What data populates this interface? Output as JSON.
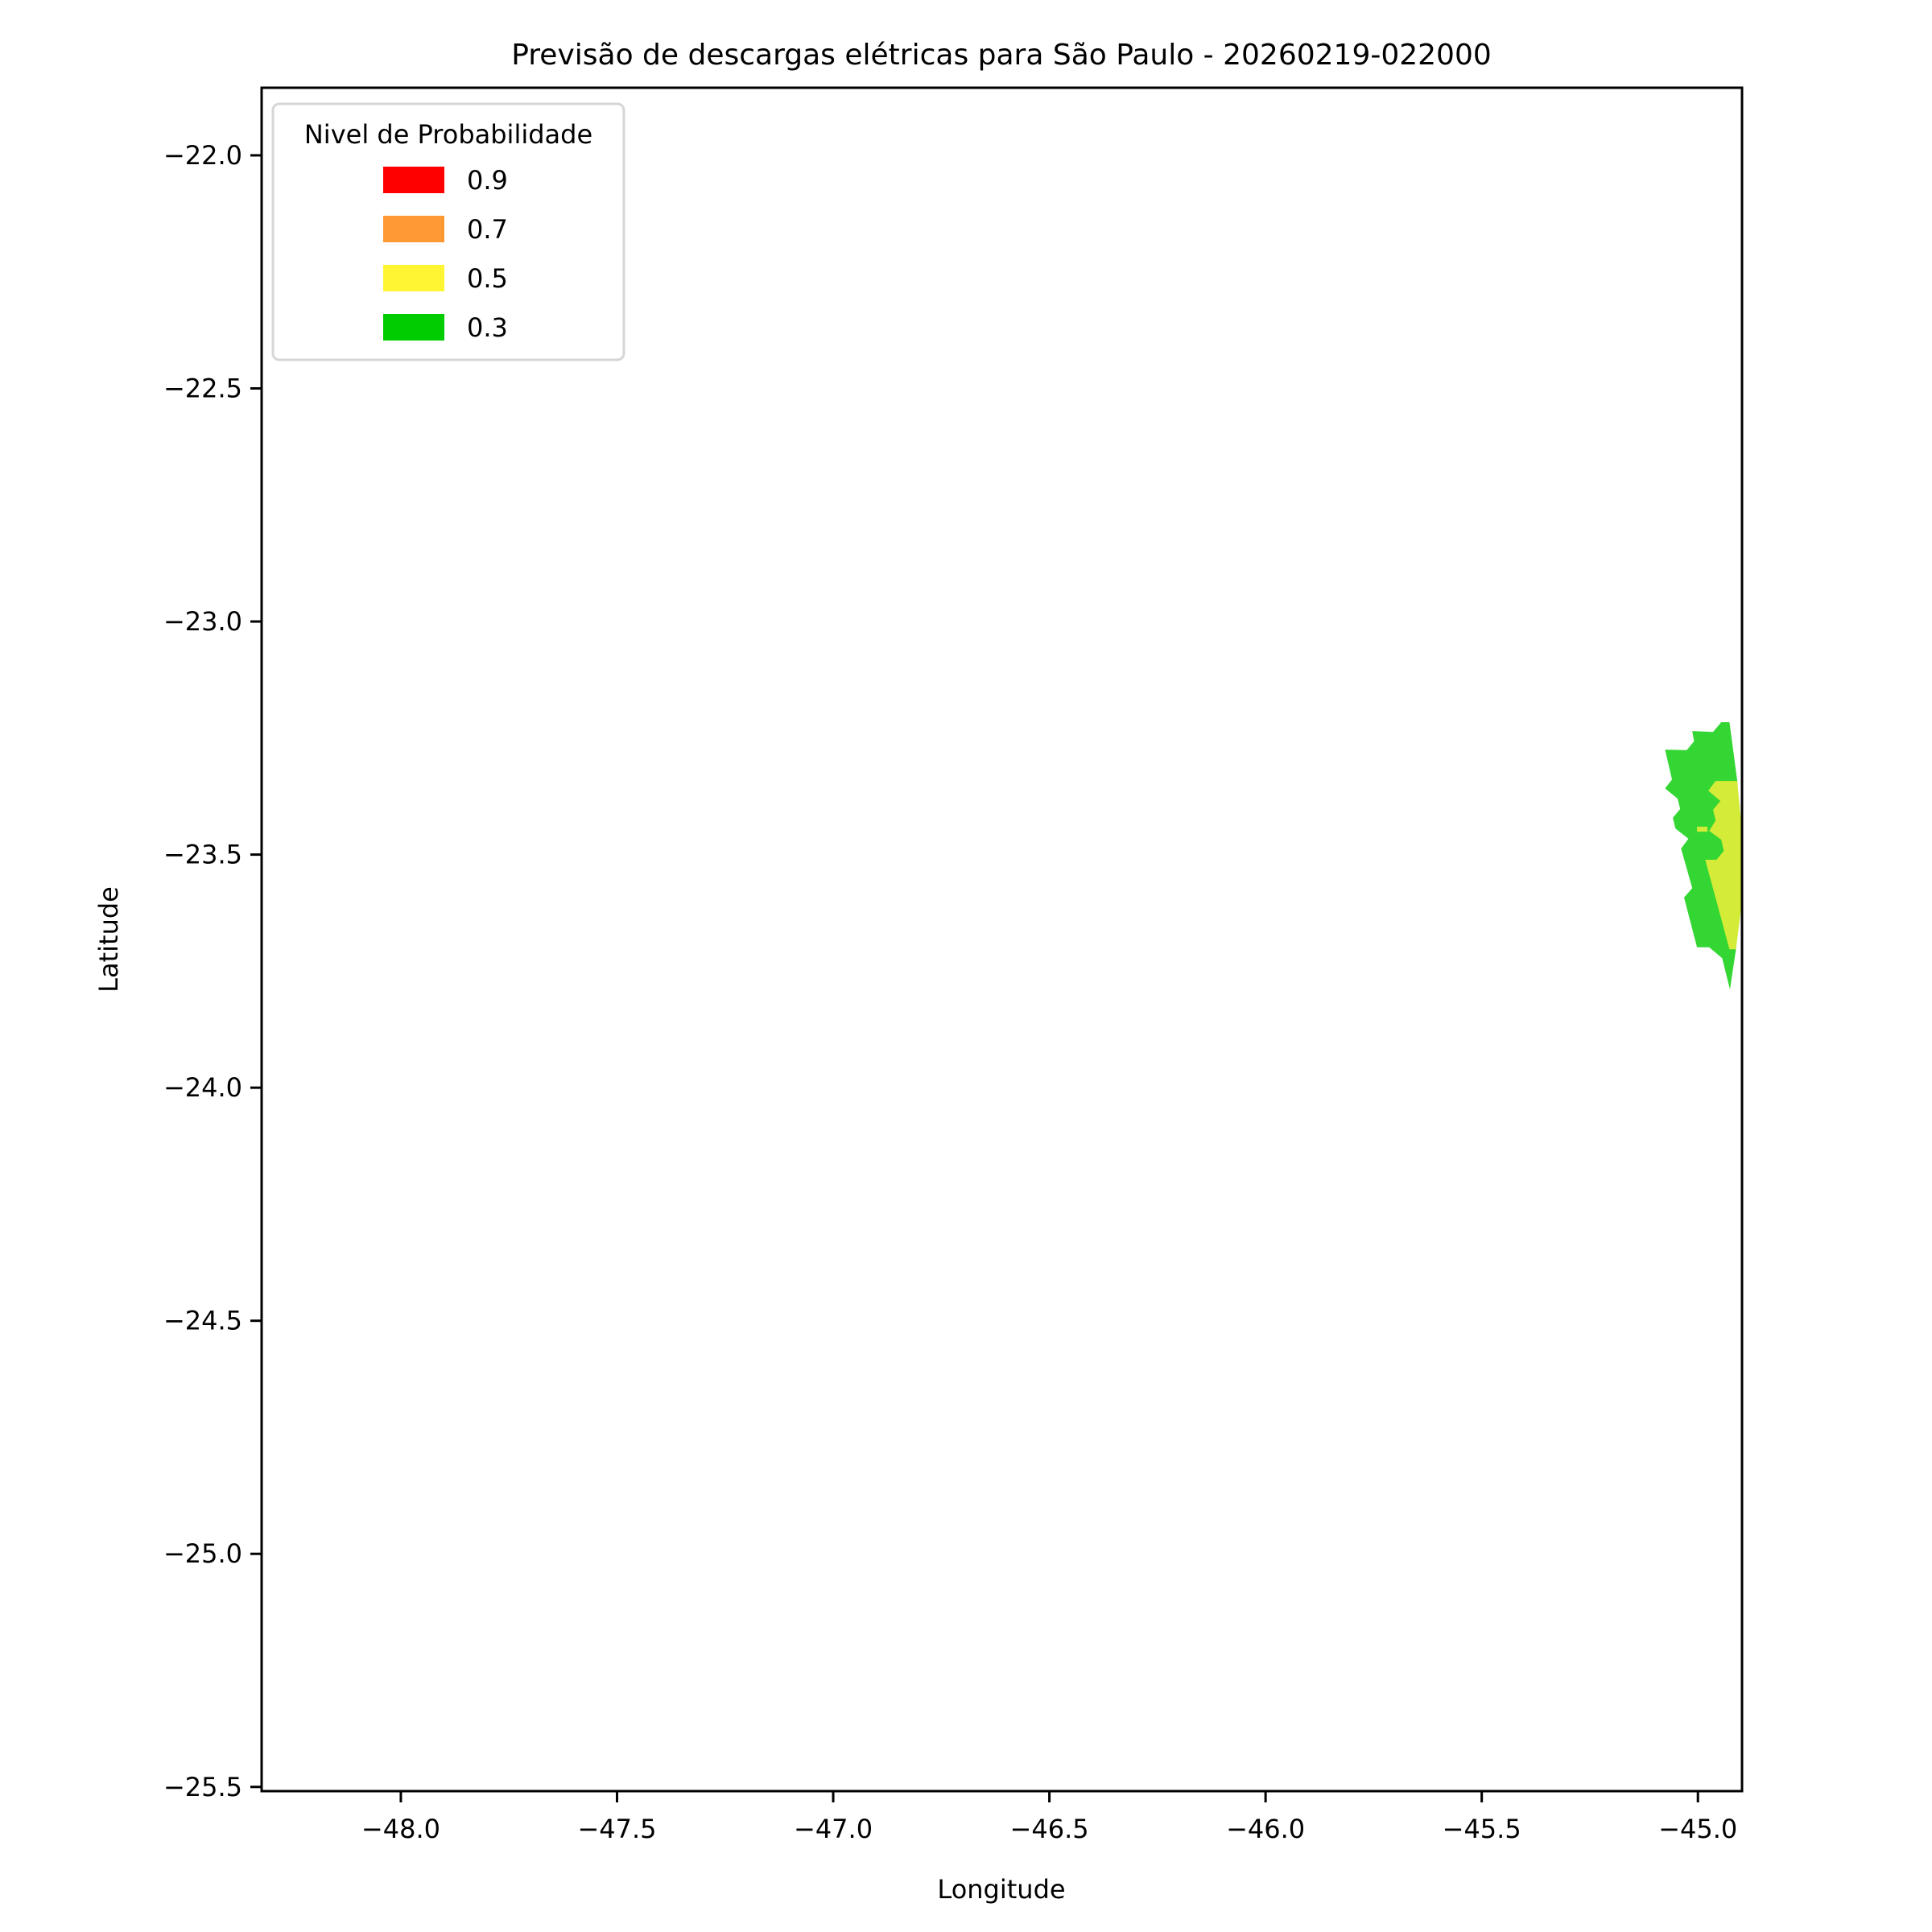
{
  "chart_data": {
    "type": "contour-map",
    "title": "Previsão de descargas elétricas para São Paulo - 20260219-022000",
    "xlabel": "Longitude",
    "ylabel": "Latitude",
    "xlim": [
      -48.322,
      -44.898
    ],
    "ylim": [
      -25.509,
      -21.855
    ],
    "xticks": [
      -48.0,
      -47.5,
      -47.0,
      -46.5,
      -46.0,
      -45.5,
      -45.0
    ],
    "xtick_labels": [
      "−48.0",
      "−47.5",
      "−47.0",
      "−46.5",
      "−46.0",
      "−45.5",
      "−45.0"
    ],
    "yticks": [
      -22.0,
      -22.5,
      -23.0,
      -23.5,
      -24.0,
      -24.5,
      -25.0,
      -25.5
    ],
    "ytick_labels": [
      "−22.0",
      "−22.5",
      "−23.0",
      "−23.5",
      "−24.0",
      "−24.5",
      "−25.0",
      "−25.5"
    ],
    "grid": false,
    "legend": {
      "title": "Nivel de Probabilidade",
      "placement": "upper-left",
      "entries": [
        {
          "label": "0.9",
          "color": "#ff0000"
        },
        {
          "label": "0.7",
          "color": "#ff9933"
        },
        {
          "label": "0.5",
          "color": "#fff533"
        },
        {
          "label": "0.3",
          "color": "#00cc00"
        }
      ]
    },
    "regions": [
      {
        "level": "0.3",
        "color": "#33d633",
        "lonlat": [
          [
            -44.927,
            -23.216
          ],
          [
            -44.946,
            -23.216
          ],
          [
            -44.965,
            -23.237
          ],
          [
            -45.013,
            -23.235
          ],
          [
            -45.009,
            -23.257
          ],
          [
            -45.026,
            -23.276
          ],
          [
            -45.076,
            -23.275
          ],
          [
            -45.06,
            -23.339
          ],
          [
            -45.076,
            -23.358
          ],
          [
            -45.047,
            -23.38
          ],
          [
            -45.041,
            -23.402
          ],
          [
            -45.058,
            -23.421
          ],
          [
            -45.052,
            -23.444
          ],
          [
            -45.022,
            -23.466
          ],
          [
            -45.039,
            -23.487
          ],
          [
            -45.013,
            -23.572
          ],
          [
            -45.032,
            -23.592
          ],
          [
            -45.002,
            -23.699
          ],
          [
            -44.974,
            -23.699
          ],
          [
            -44.944,
            -23.722
          ],
          [
            -44.926,
            -23.789
          ],
          [
            -44.912,
            -23.703
          ],
          [
            -44.898,
            -23.532
          ],
          [
            -44.909,
            -23.342
          ]
        ]
      },
      {
        "level": "0.5",
        "color": "#d4eb38",
        "lonlat": [
          [
            -44.959,
            -23.342
          ],
          [
            -44.909,
            -23.342
          ],
          [
            -44.898,
            -23.45
          ],
          [
            -44.898,
            -23.6
          ],
          [
            -44.912,
            -23.703
          ],
          [
            -44.927,
            -23.703
          ],
          [
            -44.983,
            -23.511
          ],
          [
            -44.957,
            -23.511
          ],
          [
            -44.94,
            -23.492
          ],
          [
            -44.946,
            -23.468
          ],
          [
            -44.974,
            -23.449
          ],
          [
            -44.959,
            -23.427
          ],
          [
            -44.965,
            -23.404
          ],
          [
            -44.948,
            -23.385
          ],
          [
            -44.976,
            -23.363
          ]
        ]
      },
      {
        "level": "0.5",
        "color": "#d4eb38",
        "lonlat": [
          [
            -45.002,
            -23.44
          ],
          [
            -44.978,
            -23.44
          ],
          [
            -44.978,
            -23.451
          ],
          [
            -45.002,
            -23.451
          ]
        ]
      }
    ]
  }
}
